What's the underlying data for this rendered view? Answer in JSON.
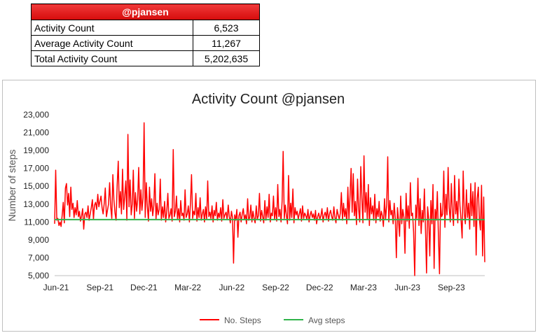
{
  "summary": {
    "header": "@pjansen",
    "rows": [
      {
        "label": "Activity Count",
        "value": "6,523"
      },
      {
        "label": "Average Activity Count",
        "value": "11,267"
      },
      {
        "label": "Total Activity Count",
        "value": "5,202,635"
      }
    ]
  },
  "colors": {
    "steps": "#ff0000",
    "avg": "#2fb34a",
    "header_bg": "#e31b1b"
  },
  "chart_data": {
    "type": "line",
    "title": "Activity Count @pjansen",
    "ylabel": "Number of steps",
    "xlabel": "",
    "ylim": [
      5000,
      23000
    ],
    "yticks": [
      "5,000",
      "7,000",
      "9,000",
      "11,000",
      "13,000",
      "15,000",
      "17,000",
      "19,000",
      "21,000",
      "23,000"
    ],
    "xticks": [
      "Jun-21",
      "Sep-21",
      "Dec-21",
      "Mar-22",
      "Jun-22",
      "Sep-22",
      "Dec-22",
      "Mar-23",
      "Jun-23",
      "Sep-23"
    ],
    "legend_position": "bottom",
    "grid": false,
    "series": [
      {
        "name": "No. Steps",
        "x_start": "2021-06-01",
        "x_end": "2023-11-30",
        "values": [
          10800,
          16800,
          11200,
          11400,
          10600,
          11000,
          10500,
          11800,
          13200,
          10900,
          14800,
          15300,
          12900,
          14200,
          11600,
          14900,
          12400,
          13100,
          11500,
          12600,
          11800,
          13400,
          11600,
          12200,
          11100,
          11700,
          12500,
          10200,
          11900,
          12100,
          11500,
          12800,
          11200,
          11900,
          12600,
          13500,
          11300,
          12900,
          13200,
          12400,
          14100,
          12700,
          13300,
          13900,
          12600,
          11900,
          13100,
          14800,
          11600,
          12300,
          13000,
          15400,
          12700,
          11400,
          16300,
          13500,
          12000,
          11200,
          15200,
          17800,
          12600,
          14400,
          11900,
          16900,
          12400,
          13800,
          15600,
          11200,
          20800,
          12700,
          15700,
          11800,
          13000,
          16800,
          11400,
          14300,
          12200,
          13500,
          17100,
          11900,
          14600,
          12300,
          13700,
          22100,
          11500,
          15400,
          12800,
          11100,
          14900,
          12200,
          13600,
          11700,
          12900,
          16400,
          11300,
          13100,
          11800,
          12400,
          15800,
          11200,
          12700,
          11500,
          13300,
          11000,
          12100,
          14200,
          11400,
          11800,
          12500,
          11100,
          19100,
          11600,
          12200,
          13900,
          11300,
          12500,
          11000,
          13400,
          11700,
          12000,
          11200,
          14600,
          11500,
          11900,
          12800,
          11000,
          13100,
          16300,
          11400,
          12200,
          11800,
          14200,
          11100,
          12600,
          11500,
          13700,
          11200,
          11900,
          12400,
          11000,
          12700,
          11300,
          15600,
          11600,
          12100,
          11400,
          12800,
          11000,
          12300,
          11700,
          13200,
          11200,
          12000,
          11500,
          12600,
          11100,
          13500,
          11400,
          11800,
          12100,
          11300,
          12900,
          11600,
          10900,
          12200,
          11500,
          6400,
          11800,
          11200,
          12400,
          9300,
          11700,
          12100,
          11000,
          11900,
          12500,
          11300,
          11800,
          10800,
          13600,
          11200,
          11500,
          12900,
          11000,
          12200,
          11400,
          10900,
          12800,
          11300,
          11700,
          14200,
          11100,
          12300,
          11600,
          10900,
          13400,
          11200,
          12700,
          11500,
          14100,
          11000,
          12000,
          11700,
          13900,
          11300,
          12600,
          11100,
          15200,
          11600,
          12400,
          11000,
          13300,
          18900,
          11400,
          12900,
          11700,
          10800,
          16200,
          11200,
          13100,
          11500,
          14700,
          10900,
          12600,
          11800,
          12200,
          11300,
          11900,
          12500,
          11100,
          12800,
          11400,
          12000,
          11700,
          11300,
          12400,
          11000,
          11800,
          12200,
          11500,
          11900,
          11200,
          12300,
          10800,
          11600,
          12000,
          11300,
          11700,
          12500,
          11000,
          11800,
          12100,
          11400,
          12600,
          11100,
          11900,
          12300,
          11600,
          11200,
          12700,
          11500,
          10900,
          12400,
          11800,
          11300,
          12000,
          14300,
          11200,
          13100,
          11600,
          12500,
          10800,
          14900,
          11300,
          13800,
          17000,
          12100,
          16400,
          11700,
          13300,
          10700,
          15800,
          12400,
          11000,
          17200,
          13600,
          10900,
          18400,
          12100,
          14300,
          11300,
          15200,
          10600,
          13700,
          11900,
          12800,
          11200,
          14100,
          10900,
          12500,
          11600,
          13300,
          11100,
          12200,
          11700,
          10500,
          13600,
          11300,
          12900,
          18300,
          11000,
          13400,
          11800,
          12300,
          10800,
          13100,
          11400,
          7000,
          12600,
          11200,
          9400,
          13900,
          10800,
          12400,
          11500,
          7500,
          14200,
          11100,
          12800,
          10300,
          15400,
          11700,
          12000,
          9900,
          5000,
          12900,
          11400,
          15900,
          10600,
          13600,
          9700,
          12300,
          11000,
          14700,
          10100,
          5300,
          12700,
          11300,
          7200,
          13400,
          10800,
          15200,
          5800,
          12400,
          11200,
          14400,
          9600,
          5200,
          13100,
          11600,
          11900,
          16700,
          10400,
          14100,
          11800,
          17100,
          12600,
          11000,
          15300,
          12100,
          10600,
          16200,
          11900,
          13300,
          10900,
          15800,
          12800,
          11300,
          9200,
          16700,
          12000,
          10800,
          14600,
          11500,
          13100,
          10200,
          15300,
          11700,
          14400,
          10500,
          15400,
          7300,
          13600,
          14900,
          11300,
          10100,
          15100,
          7200,
          13800,
          6500
        ]
      },
      {
        "name": "Avg steps",
        "values": [
          11267
        ]
      }
    ]
  }
}
